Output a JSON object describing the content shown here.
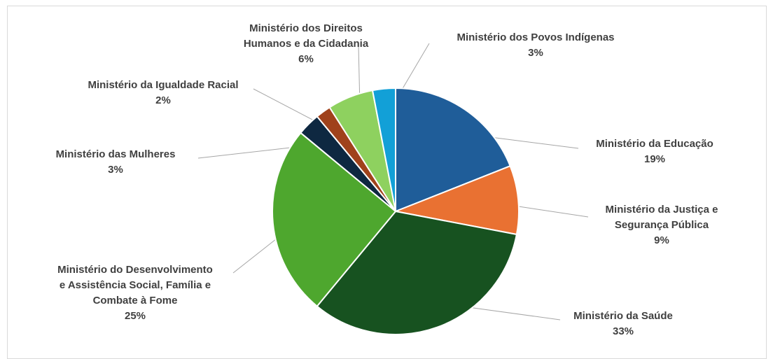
{
  "chart_data": {
    "type": "pie",
    "title": "",
    "slices": [
      {
        "label_lines": [
          "Ministério da Educação"
        ],
        "value": 19,
        "value_label": "19%",
        "color": "#1f5d99"
      },
      {
        "label_lines": [
          "Ministério da Justiça e",
          "Segurança Pública"
        ],
        "value": 9,
        "value_label": "9%",
        "color": "#e97132"
      },
      {
        "label_lines": [
          "Ministério da Saúde"
        ],
        "value": 33,
        "value_label": "33%",
        "color": "#175220"
      },
      {
        "label_lines": [
          "Ministério do Desenvolvimento",
          "e Assistência Social, Família e",
          "Combate à Fome"
        ],
        "value": 25,
        "value_label": "25%",
        "color": "#4ea72e"
      },
      {
        "label_lines": [
          "Ministério das Mulheres"
        ],
        "value": 3,
        "value_label": "3%",
        "color": "#0e2841"
      },
      {
        "label_lines": [
          "Ministério da Igualdade Racial"
        ],
        "value": 2,
        "value_label": "2%",
        "color": "#a0421b"
      },
      {
        "label_lines": [
          "Ministério dos Direitos",
          "Humanos e da Cidadania"
        ],
        "value": 6,
        "value_label": "6%",
        "color": "#8ed15f"
      },
      {
        "label_lines": [
          "Ministério dos Povos Indígenas"
        ],
        "value": 3,
        "value_label": "3%",
        "color": "#12a0d7"
      }
    ]
  }
}
